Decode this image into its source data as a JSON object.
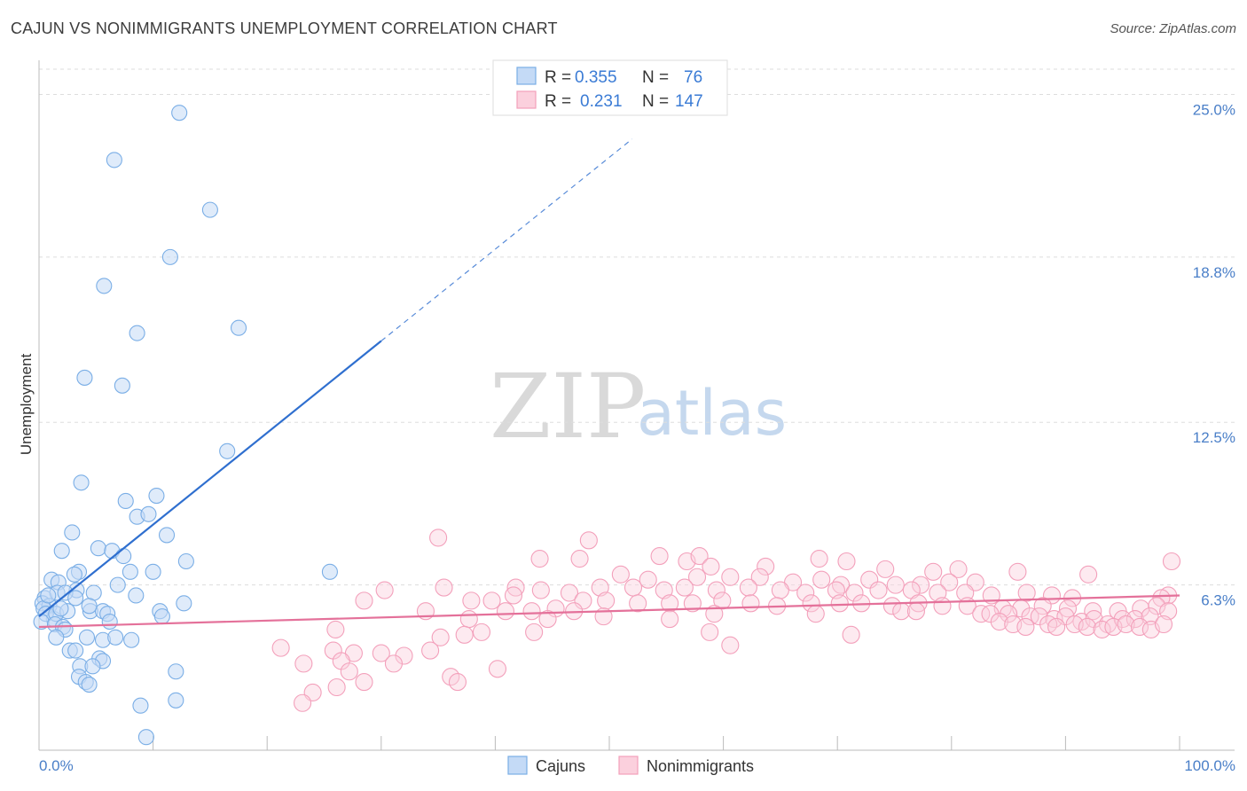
{
  "title": "CAJUN VS NONIMMIGRANTS UNEMPLOYMENT CORRELATION CHART",
  "source": "Source: ZipAtlas.com",
  "watermark": {
    "zip": "ZIP",
    "atlas": "atlas"
  },
  "chart_data": {
    "type": "scatter",
    "ylabel": "Unemployment",
    "xlim": [
      0,
      100
    ],
    "ylim": [
      0,
      26.3
    ],
    "x_tick_labels": [
      "0.0%",
      "100.0%"
    ],
    "y_ticks": [
      6.3,
      12.5,
      18.8,
      25.0
    ],
    "y_tick_labels": [
      "6.3%",
      "12.5%",
      "18.8%",
      "25.0%"
    ],
    "grid": true,
    "legend_position": "top-center",
    "colors": {
      "cajuns": "#7aaee6",
      "cajuns_line": "#2f6fcf",
      "nonimmigrants": "#f3a0bb",
      "nonimmigrants_line": "#e4719a"
    },
    "legend": [
      {
        "r_label": "R =",
        "r_value": "0.355",
        "n_label": "N =",
        "n_value": "76"
      },
      {
        "r_label": "R =",
        "r_value": "0.231",
        "n_label": "N =",
        "n_value": "147"
      }
    ],
    "series": [
      {
        "name": "Cajuns",
        "trend": {
          "x0": 0,
          "y0": 5.1,
          "x1": 30,
          "y1": 15.6,
          "dash_to_x": 52,
          "dash_to_y": 23.3
        },
        "points": [
          [
            12.3,
            24.3
          ],
          [
            6.6,
            22.5
          ],
          [
            15,
            20.6
          ],
          [
            11.5,
            18.8
          ],
          [
            5.7,
            17.7
          ],
          [
            8.6,
            15.9
          ],
          [
            17.5,
            16.1
          ],
          [
            4,
            14.2
          ],
          [
            7.3,
            13.9
          ],
          [
            16.5,
            11.4
          ],
          [
            3.7,
            10.2
          ],
          [
            7.6,
            9.5
          ],
          [
            10.3,
            9.7
          ],
          [
            8.6,
            8.9
          ],
          [
            9.6,
            9.0
          ],
          [
            2.9,
            8.3
          ],
          [
            11.2,
            8.2
          ],
          [
            2,
            7.6
          ],
          [
            5.2,
            7.7
          ],
          [
            6.4,
            7.6
          ],
          [
            7.4,
            7.4
          ],
          [
            12.9,
            7.2
          ],
          [
            25.5,
            6.8
          ],
          [
            3.5,
            6.8
          ],
          [
            10,
            6.8
          ],
          [
            8,
            6.8
          ],
          [
            1.1,
            6.5
          ],
          [
            1.7,
            6.4
          ],
          [
            3.1,
            6.7
          ],
          [
            4.8,
            6.0
          ],
          [
            3.3,
            6.1
          ],
          [
            0.5,
            5.8
          ],
          [
            1.6,
            6.0
          ],
          [
            2.3,
            6.0
          ],
          [
            0.3,
            5.6
          ],
          [
            0.9,
            5.5
          ],
          [
            6.9,
            6.3
          ],
          [
            8.5,
            5.9
          ],
          [
            3.2,
            5.8
          ],
          [
            1.3,
            5.0
          ],
          [
            0.4,
            5.4
          ],
          [
            0.6,
            5.2
          ],
          [
            1.5,
            5.2
          ],
          [
            2.5,
            5.3
          ],
          [
            4.5,
            5.3
          ],
          [
            5.6,
            5.3
          ],
          [
            6,
            5.2
          ],
          [
            10.6,
            5.3
          ],
          [
            12.7,
            5.6
          ],
          [
            0.2,
            4.9
          ],
          [
            1.4,
            4.8
          ],
          [
            2.1,
            4.7
          ],
          [
            2.3,
            4.6
          ],
          [
            4.4,
            5.5
          ],
          [
            10.8,
            5.1
          ],
          [
            6.2,
            4.9
          ],
          [
            1.5,
            4.3
          ],
          [
            4.2,
            4.3
          ],
          [
            5.6,
            4.2
          ],
          [
            6.7,
            4.3
          ],
          [
            8.1,
            4.2
          ],
          [
            2.7,
            3.8
          ],
          [
            3.2,
            3.8
          ],
          [
            5.3,
            3.5
          ],
          [
            5.6,
            3.4
          ],
          [
            3.6,
            3.2
          ],
          [
            4.7,
            3.2
          ],
          [
            12,
            3.0
          ],
          [
            3.5,
            2.8
          ],
          [
            4.1,
            2.6
          ],
          [
            4.4,
            2.5
          ],
          [
            12,
            1.9
          ],
          [
            8.9,
            1.7
          ],
          [
            9.4,
            0.5
          ],
          [
            0.8,
            5.9
          ],
          [
            1.9,
            5.4
          ]
        ]
      },
      {
        "name": "Nonimmigrants",
        "trend": {
          "x0": 0,
          "y0": 4.7,
          "x1": 100,
          "y1": 5.9
        },
        "points": [
          [
            35,
            8.1
          ],
          [
            48.2,
            8.0
          ],
          [
            43.9,
            7.3
          ],
          [
            47.4,
            7.3
          ],
          [
            54.4,
            7.4
          ],
          [
            56.8,
            7.2
          ],
          [
            57.9,
            7.4
          ],
          [
            58.9,
            7.0
          ],
          [
            63.7,
            7.0
          ],
          [
            68.4,
            7.3
          ],
          [
            70.8,
            7.2
          ],
          [
            74.2,
            6.9
          ],
          [
            78.4,
            6.8
          ],
          [
            80.6,
            6.9
          ],
          [
            85.8,
            6.8
          ],
          [
            92,
            6.7
          ],
          [
            99.3,
            7.2
          ],
          [
            51,
            6.7
          ],
          [
            53.4,
            6.5
          ],
          [
            57.7,
            6.6
          ],
          [
            60.6,
            6.6
          ],
          [
            63.2,
            6.6
          ],
          [
            66.1,
            6.4
          ],
          [
            68.6,
            6.5
          ],
          [
            70.3,
            6.3
          ],
          [
            72.8,
            6.5
          ],
          [
            75.1,
            6.3
          ],
          [
            77.3,
            6.3
          ],
          [
            79.8,
            6.4
          ],
          [
            82.1,
            6.4
          ],
          [
            30.3,
            6.1
          ],
          [
            35.5,
            6.2
          ],
          [
            44,
            6.1
          ],
          [
            41.8,
            6.2
          ],
          [
            46.5,
            6.0
          ],
          [
            49.2,
            6.2
          ],
          [
            52.1,
            6.2
          ],
          [
            54.8,
            6.1
          ],
          [
            56.6,
            6.2
          ],
          [
            59.4,
            6.1
          ],
          [
            62.2,
            6.2
          ],
          [
            65,
            6.1
          ],
          [
            67.2,
            6.0
          ],
          [
            69.9,
            6.1
          ],
          [
            71.5,
            6.0
          ],
          [
            73.6,
            6.1
          ],
          [
            76.5,
            6.1
          ],
          [
            78.8,
            6.0
          ],
          [
            81.2,
            6.0
          ],
          [
            83.5,
            5.9
          ],
          [
            86.6,
            6.0
          ],
          [
            88.8,
            5.9
          ],
          [
            90.6,
            5.8
          ],
          [
            99,
            5.9
          ],
          [
            98.4,
            5.8
          ],
          [
            28.5,
            5.7
          ],
          [
            37.9,
            5.7
          ],
          [
            39.7,
            5.7
          ],
          [
            41.6,
            5.9
          ],
          [
            47.7,
            5.7
          ],
          [
            49.7,
            5.7
          ],
          [
            52.5,
            5.6
          ],
          [
            55.3,
            5.6
          ],
          [
            57.3,
            5.6
          ],
          [
            59.9,
            5.7
          ],
          [
            62.4,
            5.6
          ],
          [
            64.7,
            5.5
          ],
          [
            67.7,
            5.6
          ],
          [
            70.2,
            5.6
          ],
          [
            72.1,
            5.6
          ],
          [
            74.8,
            5.5
          ],
          [
            77.1,
            5.6
          ],
          [
            79.2,
            5.5
          ],
          [
            81.4,
            5.5
          ],
          [
            84.5,
            5.4
          ],
          [
            86.1,
            5.4
          ],
          [
            88,
            5.5
          ],
          [
            90.2,
            5.4
          ],
          [
            92.4,
            5.3
          ],
          [
            94.6,
            5.3
          ],
          [
            96.6,
            5.4
          ],
          [
            98,
            5.5
          ],
          [
            33.9,
            5.3
          ],
          [
            40.9,
            5.3
          ],
          [
            43.2,
            5.3
          ],
          [
            45.3,
            5.4
          ],
          [
            46.9,
            5.3
          ],
          [
            59.2,
            5.2
          ],
          [
            68.1,
            5.2
          ],
          [
            75.6,
            5.3
          ],
          [
            76.9,
            5.3
          ],
          [
            82.6,
            5.2
          ],
          [
            83.4,
            5.2
          ],
          [
            85,
            5.2
          ],
          [
            86.9,
            5.1
          ],
          [
            87.7,
            5.1
          ],
          [
            89,
            5.0
          ],
          [
            90,
            5.1
          ],
          [
            91.4,
            4.9
          ],
          [
            92.5,
            5.0
          ],
          [
            93.7,
            4.8
          ],
          [
            95,
            5.0
          ],
          [
            96.1,
            5.0
          ],
          [
            97.4,
            5.1
          ],
          [
            99,
            5.3
          ],
          [
            37.7,
            5.0
          ],
          [
            44.6,
            5.0
          ],
          [
            49.5,
            5.1
          ],
          [
            55.3,
            5.0
          ],
          [
            84.2,
            4.9
          ],
          [
            85.4,
            4.8
          ],
          [
            86.5,
            4.7
          ],
          [
            88.5,
            4.8
          ],
          [
            89.2,
            4.7
          ],
          [
            90.8,
            4.8
          ],
          [
            91.9,
            4.7
          ],
          [
            93.2,
            4.6
          ],
          [
            94.2,
            4.7
          ],
          [
            95.3,
            4.8
          ],
          [
            96.5,
            4.7
          ],
          [
            97.5,
            4.6
          ],
          [
            98.6,
            4.8
          ],
          [
            26,
            4.6
          ],
          [
            35.2,
            4.3
          ],
          [
            37.3,
            4.4
          ],
          [
            38.8,
            4.5
          ],
          [
            43.4,
            4.5
          ],
          [
            58.8,
            4.5
          ],
          [
            60.6,
            4.0
          ],
          [
            71.2,
            4.4
          ],
          [
            21.2,
            3.9
          ],
          [
            25.8,
            3.8
          ],
          [
            27.6,
            3.7
          ],
          [
            30,
            3.7
          ],
          [
            32,
            3.6
          ],
          [
            34.3,
            3.8
          ],
          [
            26.5,
            3.4
          ],
          [
            31.1,
            3.3
          ],
          [
            23.2,
            3.3
          ],
          [
            27.2,
            3.0
          ],
          [
            36.1,
            2.8
          ],
          [
            36.7,
            2.6
          ],
          [
            40.2,
            3.1
          ],
          [
            28.5,
            2.6
          ],
          [
            26.1,
            2.4
          ],
          [
            24,
            2.2
          ],
          [
            23.1,
            1.8
          ]
        ]
      }
    ]
  },
  "bottom_legend": [
    {
      "label": "Cajuns"
    },
    {
      "label": "Nonimmigrants"
    }
  ]
}
